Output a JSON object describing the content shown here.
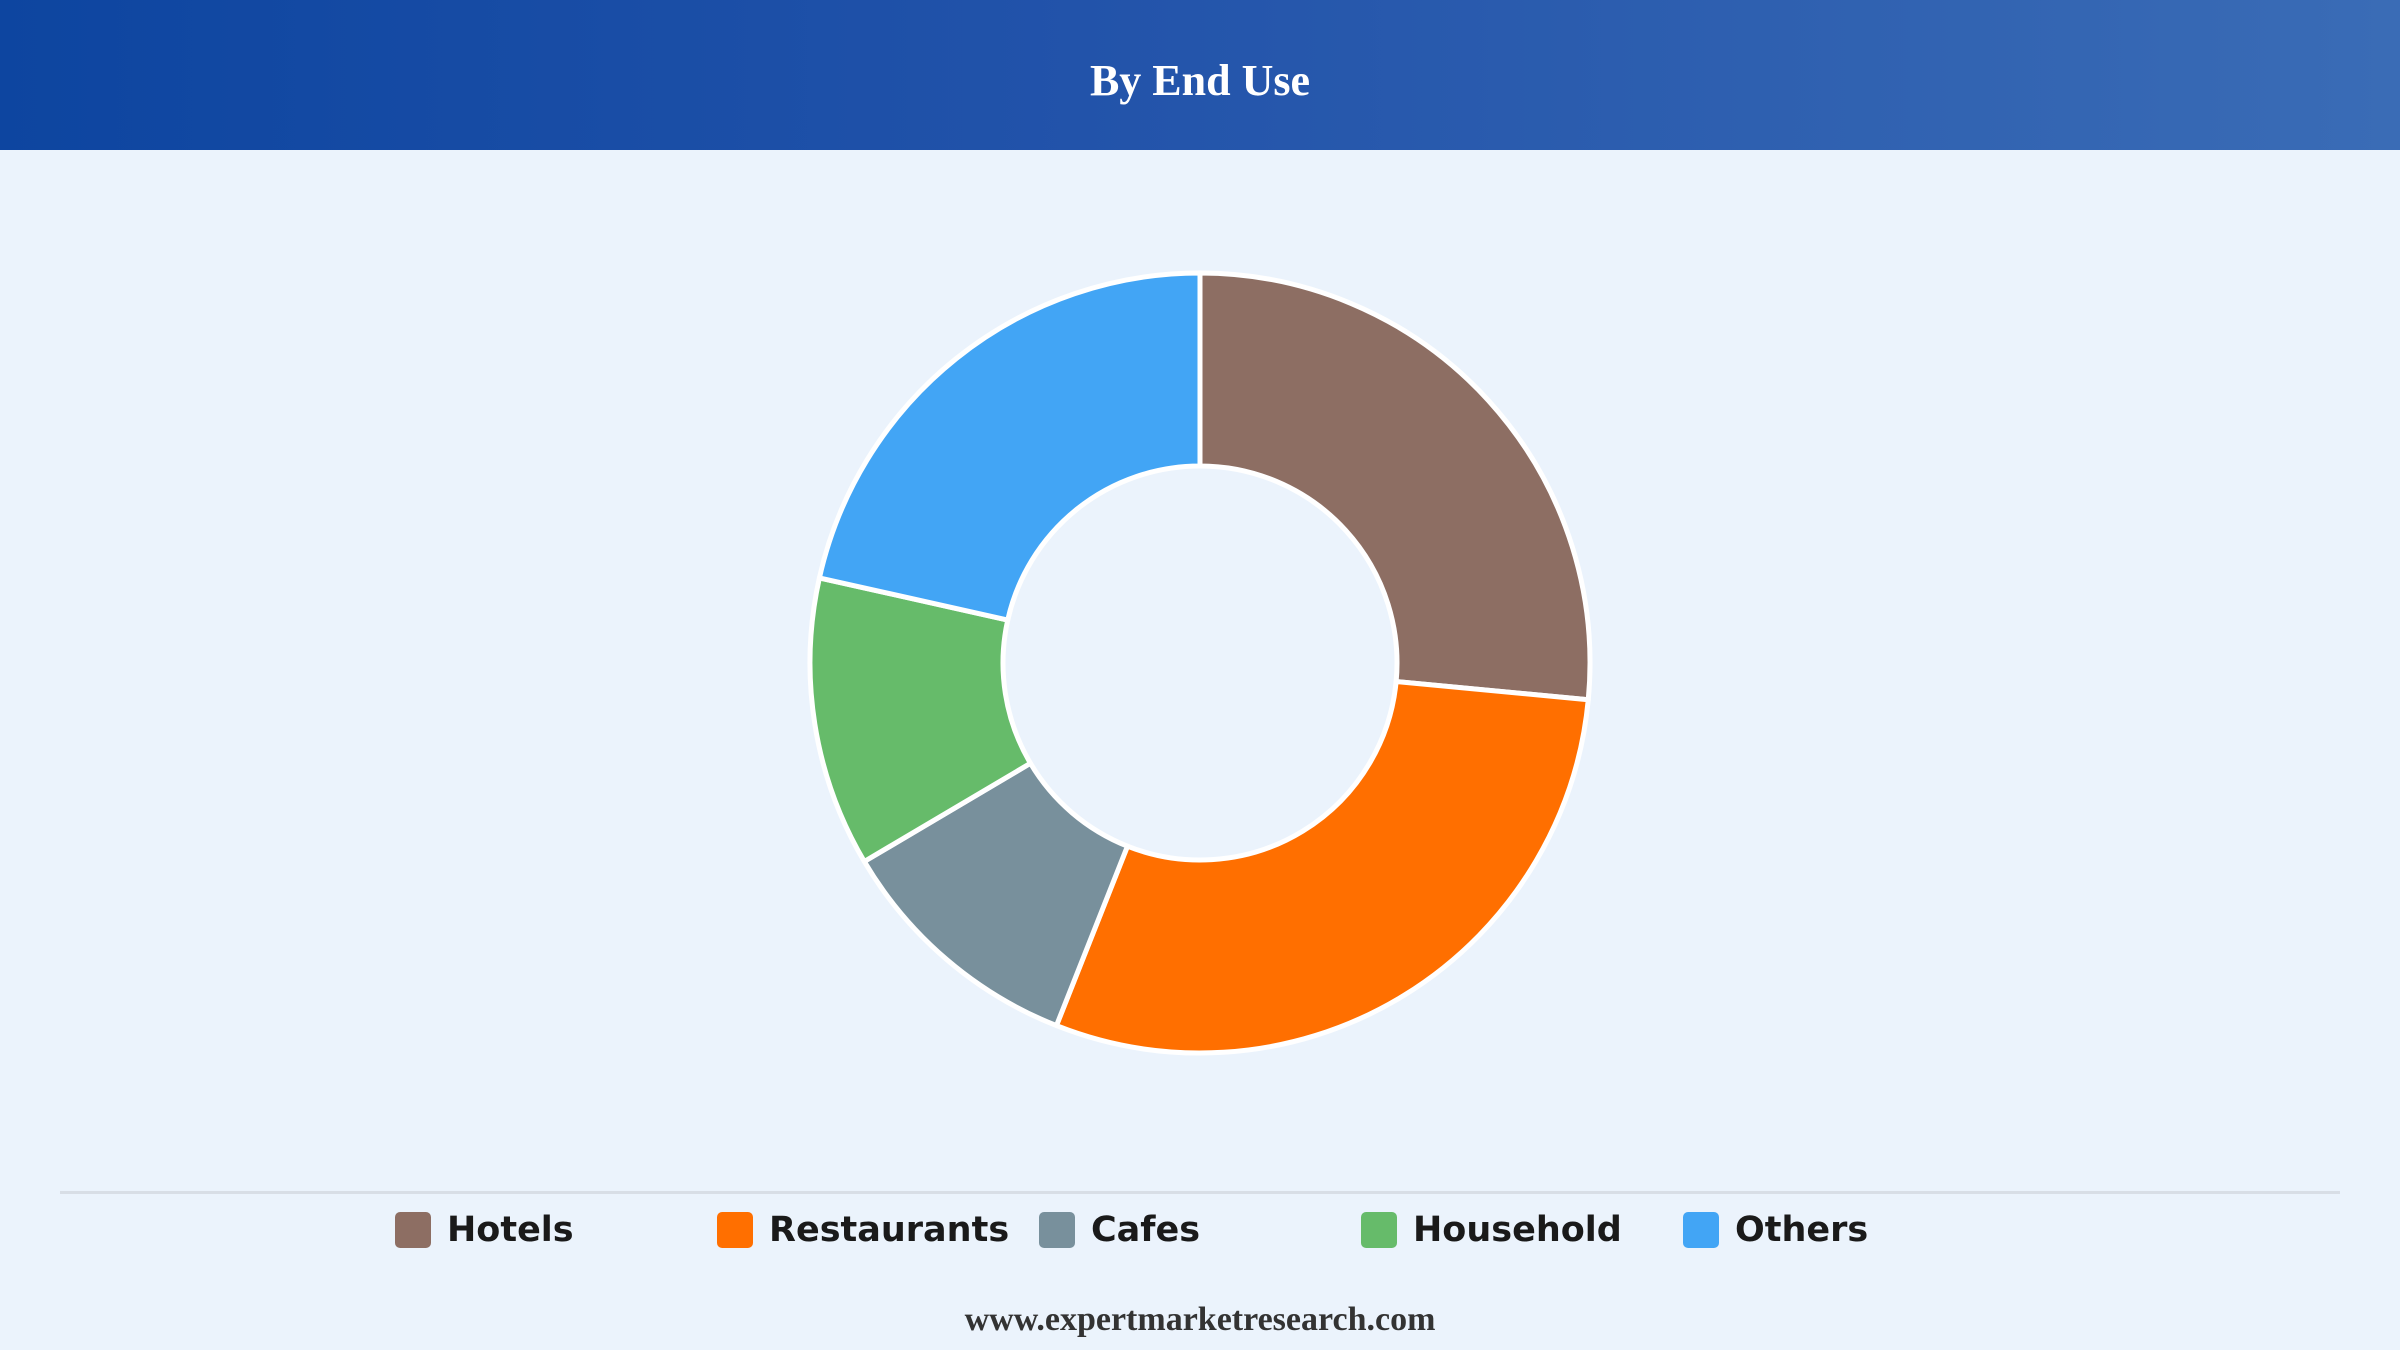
{
  "header": {
    "title": "By End Use"
  },
  "chart_data": {
    "type": "pie",
    "variant": "donut",
    "title": "By End Use",
    "categories": [
      "Hotels",
      "Restaurants",
      "Cafes",
      "Household",
      "Others"
    ],
    "values": [
      26.5,
      29.5,
      10.5,
      12,
      21.5
    ],
    "unit": "percent (estimated share)",
    "colors": [
      "#8D6E63",
      "#FF6F00",
      "#78909C",
      "#66BB6A",
      "#42A5F5"
    ],
    "legend_position": "bottom",
    "start_angle": "12 o'clock, clockwise"
  },
  "legend": {
    "items": [
      {
        "label": "Hotels",
        "color": "#8D6E63"
      },
      {
        "label": "Restaurants",
        "color": "#FF6F00"
      },
      {
        "label": "Cafes",
        "color": "#78909C"
      },
      {
        "label": "Household",
        "color": "#66BB6A"
      },
      {
        "label": "Others",
        "color": "#42A5F5"
      }
    ]
  },
  "footer": {
    "source": "www.expertmarketresearch.com"
  }
}
